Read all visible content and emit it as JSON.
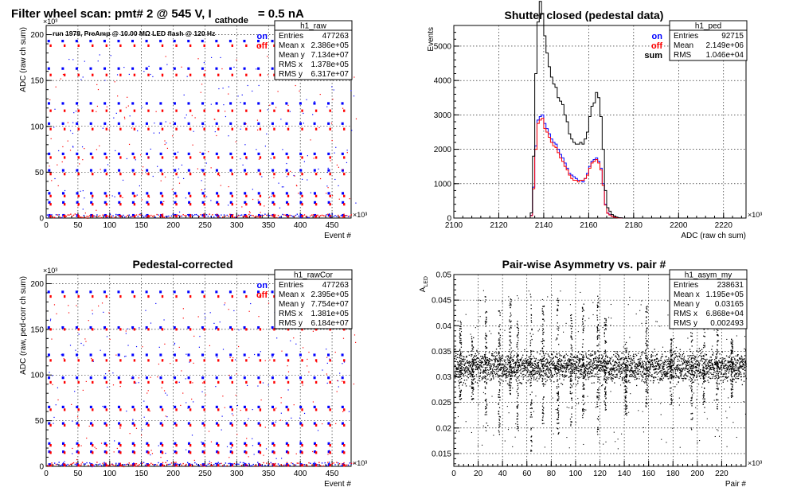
{
  "page": {
    "main_title": "Filter wheel scan: pmt#   2 @   545 V, I",
    "main_title_sub": "cathode",
    "main_title_tail": "= 0.5 nA"
  },
  "chart_data": [
    {
      "type": "scatter",
      "title": "",
      "annotation": "run 1978, PreAmp @ 10.00 MΩ LED flash @  120 Hz",
      "xlabel": "Event #",
      "ylabel": "ADC (raw ch sum)",
      "x_multiplier": "×10³",
      "y_multiplier": "×10³",
      "xlim": [
        0,
        480
      ],
      "ylim": [
        0,
        210
      ],
      "xticks": [
        0,
        50,
        100,
        150,
        200,
        250,
        300,
        350,
        400,
        450
      ],
      "yticks": [
        0,
        50,
        100,
        150,
        200
      ],
      "grid": true,
      "legend": [
        "on",
        "off"
      ],
      "legend_colors": [
        "#0000ff",
        "#ff0000"
      ],
      "stats": {
        "name": "h1_raw",
        "rows": [
          [
            "Entries",
            "477263"
          ],
          [
            "Mean x",
            "2.386e+05"
          ],
          [
            "Mean y",
            "7.134e+07"
          ],
          [
            "RMS x",
            "1.378e+05"
          ],
          [
            "RMS y",
            "6.317e+07"
          ]
        ]
      },
      "steps": [
        {
          "on": 193,
          "off": 188
        },
        {
          "on": 163,
          "off": 156
        },
        {
          "on": 125,
          "off": 117
        },
        {
          "on": 103,
          "off": 97
        },
        {
          "on": 70,
          "off": 66
        },
        {
          "on": 52,
          "off": 48
        },
        {
          "on": 27,
          "off": 24
        },
        {
          "on": 17,
          "off": 15
        },
        {
          "on": 3,
          "off": 2
        }
      ]
    },
    {
      "type": "line",
      "title": "Shutter closed (pedestal data)",
      "xlabel": "ADC (raw ch sum)",
      "ylabel": "Events",
      "x_multiplier": "×10³",
      "xlim": [
        2100,
        2230
      ],
      "ylim": [
        0,
        5600
      ],
      "xticks": [
        2100,
        2120,
        2140,
        2160,
        2180,
        2200,
        2220
      ],
      "yticks": [
        0,
        1000,
        2000,
        3000,
        4000,
        5000
      ],
      "grid": true,
      "legend": [
        "on",
        "off",
        "sum"
      ],
      "legend_colors": [
        "#0000ff",
        "#ff0000",
        "#000000"
      ],
      "stats": {
        "name": "h1_ped",
        "rows": [
          [
            "Entries",
            "92715"
          ],
          [
            "Mean",
            "2.149e+06"
          ],
          [
            "RMS",
            "1.046e+04"
          ]
        ]
      },
      "x": [
        2134,
        2135,
        2136,
        2137,
        2138,
        2139,
        2140,
        2141,
        2142,
        2143,
        2144,
        2145,
        2146,
        2147,
        2148,
        2149,
        2150,
        2151,
        2152,
        2153,
        2154,
        2155,
        2156,
        2157,
        2158,
        2159,
        2160,
        2161,
        2162,
        2163,
        2164,
        2165,
        2166,
        2167,
        2168,
        2169,
        2170,
        2171,
        2172,
        2173,
        2174,
        2175
      ],
      "series": [
        {
          "name": "sum",
          "values": [
            150,
            1800,
            4200,
            5700,
            6300,
            5950,
            5300,
            4800,
            4400,
            4100,
            3900,
            3800,
            3500,
            3400,
            3300,
            3000,
            2800,
            2450,
            2300,
            2200,
            2150,
            2150,
            2200,
            2150,
            2300,
            2500,
            2950,
            3250,
            3350,
            3650,
            3500,
            2950,
            2000,
            800,
            300,
            200,
            100,
            60,
            30,
            10,
            5,
            0
          ]
        },
        {
          "name": "on",
          "values": [
            80,
            900,
            2100,
            2850,
            2950,
            3000,
            2750,
            2600,
            2450,
            2300,
            2200,
            2150,
            2000,
            1850,
            1750,
            1600,
            1450,
            1300,
            1250,
            1200,
            1150,
            1100,
            1100,
            1050,
            1150,
            1300,
            1500,
            1650,
            1700,
            1750,
            1650,
            1450,
            1000,
            400,
            150,
            100,
            50,
            30,
            15,
            5,
            2,
            0
          ]
        },
        {
          "name": "off",
          "values": [
            70,
            850,
            2000,
            2750,
            2850,
            2900,
            2600,
            2500,
            2350,
            2200,
            2100,
            2050,
            1900,
            1750,
            1650,
            1500,
            1400,
            1250,
            1150,
            1100,
            1100,
            1050,
            1100,
            1100,
            1150,
            1250,
            1450,
            1600,
            1650,
            1700,
            1600,
            1400,
            950,
            380,
            140,
            90,
            45,
            25,
            12,
            4,
            2,
            0
          ]
        }
      ]
    },
    {
      "type": "scatter",
      "title": "Pedestal-corrected",
      "xlabel": "Event #",
      "ylabel": "ADC (raw, ped-corr ch sum)",
      "x_multiplier": "×10³",
      "y_multiplier": "×10³",
      "xlim": [
        0,
        480
      ],
      "ylim": [
        0,
        210
      ],
      "xticks": [
        0,
        50,
        100,
        150,
        200,
        250,
        300,
        350,
        400,
        450
      ],
      "yticks": [
        0,
        50,
        100,
        150,
        200
      ],
      "grid": true,
      "legend": [
        "on",
        "off"
      ],
      "legend_colors": [
        "#0000ff",
        "#ff0000"
      ],
      "stats": {
        "name": "h1_rawCor",
        "rows": [
          [
            "Entries",
            "477263"
          ],
          [
            "Mean x",
            "2.395e+05"
          ],
          [
            "Mean y",
            "7.754e+07"
          ],
          [
            "RMS x",
            "1.381e+05"
          ],
          [
            "RMS y",
            "6.184e+07"
          ]
        ]
      },
      "steps": [
        {
          "on": 191,
          "off": 186
        },
        {
          "on": 152,
          "off": 150
        },
        {
          "on": 122,
          "off": 116
        },
        {
          "on": 97,
          "off": 92
        },
        {
          "on": 65,
          "off": 62
        },
        {
          "on": 47,
          "off": 45
        },
        {
          "on": 25,
          "off": 23
        },
        {
          "on": 16,
          "off": 15
        },
        {
          "on": 2,
          "off": 1
        }
      ]
    },
    {
      "type": "scatter",
      "title": "Pair-wise Asymmetry vs. pair #",
      "xlabel": "Pair #",
      "ylabel": "A_LED",
      "x_multiplier": "×10³",
      "xlim": [
        0,
        240
      ],
      "ylim": [
        0.0125,
        0.05
      ],
      "xticks": [
        0,
        20,
        40,
        60,
        80,
        100,
        120,
        140,
        160,
        180,
        200,
        220
      ],
      "yticks": [
        0.015,
        0.02,
        0.025,
        0.03,
        0.035,
        0.04,
        0.045,
        0.05
      ],
      "grid": true,
      "stats": {
        "name": "h1_asym_my",
        "rows": [
          [
            "Entries",
            "238631"
          ],
          [
            "Mean x",
            "1.195e+05"
          ],
          [
            "Mean y",
            "0.03165"
          ],
          [
            "RMS x",
            "6.868e+04"
          ],
          [
            "RMS y",
            "0.002493"
          ]
        ]
      },
      "band_center": 0.032,
      "band_halfwidth": 0.0025,
      "spikes": [
        {
          "x": 5,
          "top": 0.0415,
          "bottom": 0.0255
        },
        {
          "x": 15,
          "top": 0.038,
          "bottom": 0.0255
        },
        {
          "x": 26,
          "top": 0.0465,
          "bottom": 0.0195
        },
        {
          "x": 37,
          "top": 0.0435,
          "bottom": 0.0185
        },
        {
          "x": 46,
          "top": 0.0455,
          "bottom": 0.026
        },
        {
          "x": 52,
          "top": 0.041,
          "bottom": 0.0195
        },
        {
          "x": 63,
          "top": 0.0465,
          "bottom": 0.0155
        },
        {
          "x": 73,
          "top": 0.044,
          "bottom": 0.0205
        },
        {
          "x": 85,
          "top": 0.046,
          "bottom": 0.0185
        },
        {
          "x": 96,
          "top": 0.0425,
          "bottom": 0.0195
        },
        {
          "x": 106,
          "top": 0.0445,
          "bottom": 0.0215
        },
        {
          "x": 118,
          "top": 0.0465,
          "bottom": 0.0185
        },
        {
          "x": 124,
          "top": 0.0415,
          "bottom": 0.0235
        },
        {
          "x": 141,
          "top": 0.037,
          "bottom": 0.0225
        },
        {
          "x": 158,
          "top": 0.044,
          "bottom": 0.024
        },
        {
          "x": 178,
          "top": 0.0375,
          "bottom": 0.0245
        },
        {
          "x": 195,
          "top": 0.046,
          "bottom": 0.0195
        },
        {
          "x": 205,
          "top": 0.0425,
          "bottom": 0.0235
        },
        {
          "x": 216,
          "top": 0.0445,
          "bottom": 0.0235
        },
        {
          "x": 228,
          "top": 0.0375,
          "bottom": 0.026
        }
      ]
    }
  ]
}
